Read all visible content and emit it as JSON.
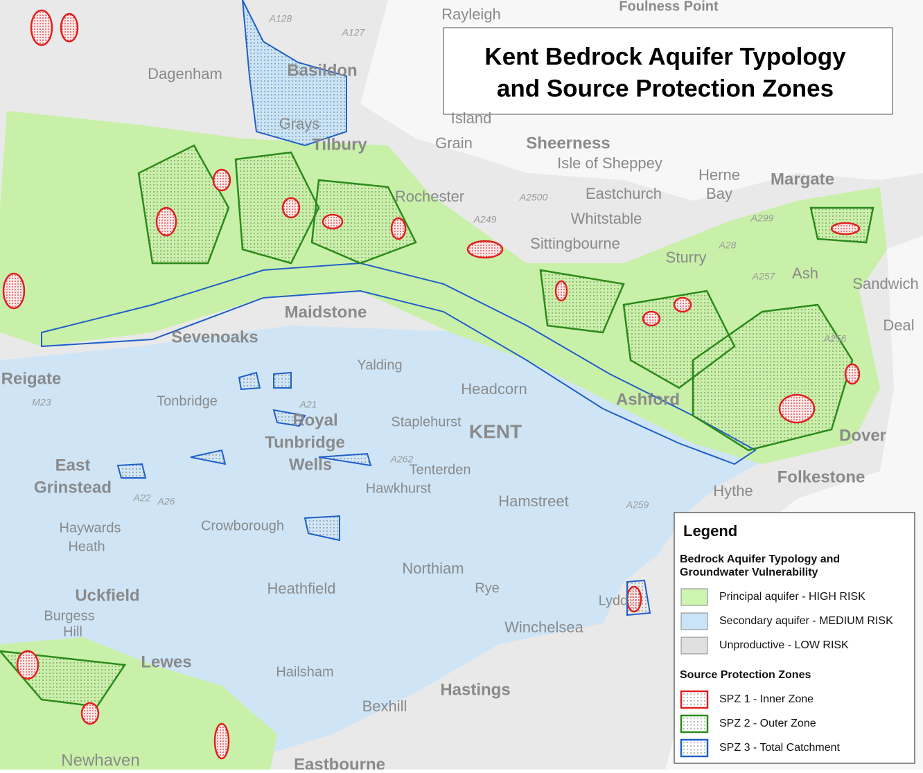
{
  "title": {
    "lines": [
      "Kent Bedrock Aquifer Typology",
      "and Source Protection Zones"
    ]
  },
  "legend": {
    "title": "Legend",
    "sections": [
      {
        "heading": [
          "Bedrock Aquifer Typology and",
          "Groundwater Vulnerability"
        ],
        "items": [
          "Principal aquifer - HIGH RISK",
          "Secondary aquifer - MEDIUM RISK",
          "Unproductive - LOW RISK"
        ]
      },
      {
        "heading": [
          "Source Protection Zones"
        ],
        "items": [
          "SPZ 1 - Inner Zone",
          "SPZ 2 - Outer Zone",
          "SPZ 3 - Total Catchment"
        ]
      }
    ]
  },
  "places": [
    "Rayleigh",
    "Foulness Point",
    "Basildon",
    "Dagenham",
    "Grays",
    "Tilbury",
    "Island",
    "Grain",
    "Sheerness",
    "Isle of Sheppey",
    "Herne",
    "Bay",
    "Margate",
    "Eastchurch",
    "Whitstable",
    "Rochester",
    "Sittingbourne",
    "Sturry",
    "Ash",
    "Sandwich",
    "Deal",
    "Maidstone",
    "Sevenoaks",
    "Reigate",
    "Yalding",
    "Headcorn",
    "Ashford",
    "Tonbridge",
    "Staplehurst",
    "Royal",
    "Tunbridge",
    "Wells",
    "KENT",
    "Dover",
    "Tenterden",
    "Folkestone",
    "Hythe",
    "East",
    "Grinstead",
    "Hawkhurst",
    "Hamstreet",
    "Haywards",
    "Heath",
    "Crowborough",
    "Northiam",
    "Heathfield",
    "Rye",
    "Uckfield",
    "Burgess",
    "Hill",
    "Lydd",
    "Winchelsea",
    "Hailsham",
    "Lewes",
    "Hastings",
    "Bexhill",
    "Newhaven",
    "Eastbourne",
    "Margate"
  ],
  "roads": [
    "A127",
    "A128",
    "A2500",
    "A249",
    "A299",
    "A28",
    "A256",
    "A26",
    "A22",
    "A259",
    "A262",
    "A21",
    "M23",
    "A257"
  ]
}
